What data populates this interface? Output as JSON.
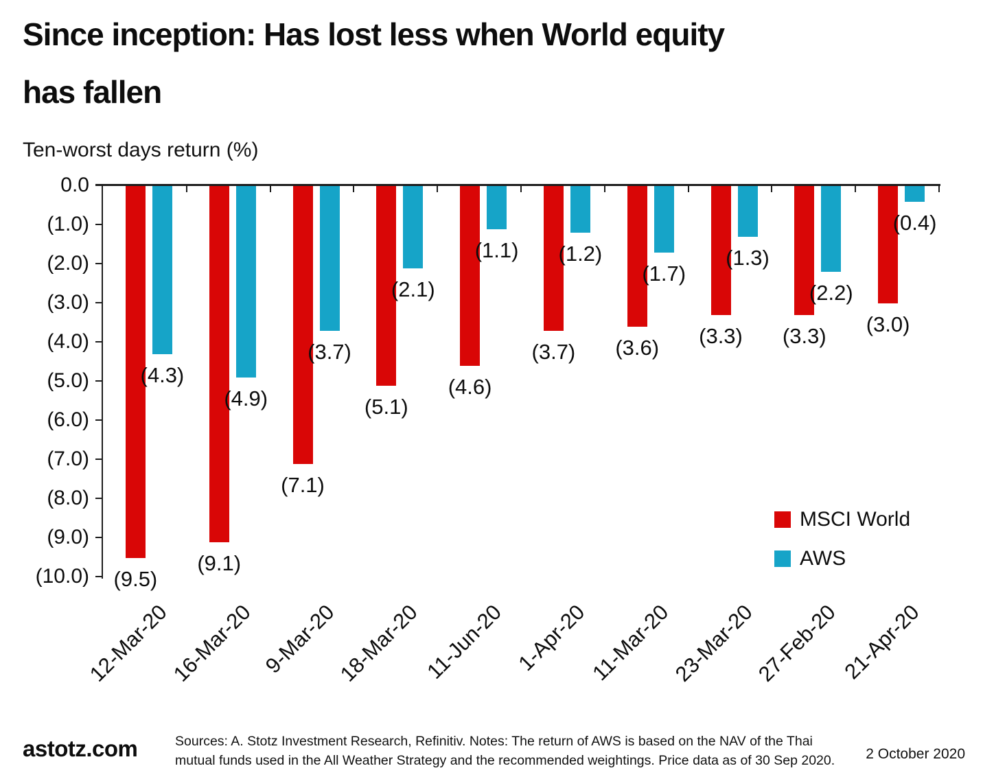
{
  "title": {
    "line1": "Since inception: Has lost less when World equity",
    "line2": "has fallen"
  },
  "subtitle": "Ten-worst days return (%)",
  "legend": [
    {
      "label": "MSCI World",
      "color": "#D90606"
    },
    {
      "label": "AWS",
      "color": "#16A4C8"
    }
  ],
  "footer": {
    "brand": "astotz.com",
    "note_line1": "Sources: A. Stotz Investment Research, Refinitiv. Notes: The return of AWS is based on the NAV of the Thai",
    "note_line2": "mutual funds used in the All Weather Strategy and the recommended weightings. Price data as of 30 Sep 2020.",
    "date": "2 October 2020"
  },
  "chart_data": {
    "type": "bar",
    "title": "Since inception: Has lost less when World equity has fallen",
    "ylabel": "Ten-worst days return (%)",
    "xlabel": "",
    "categories": [
      "12-Mar-20",
      "16-Mar-20",
      "9-Mar-20",
      "18-Mar-20",
      "11-Jun-20",
      "1-Apr-20",
      "11-Mar-20",
      "23-Mar-20",
      "27-Feb-20",
      "21-Apr-20"
    ],
    "series": [
      {
        "name": "MSCI World",
        "color": "#D90606",
        "values": [
          -9.5,
          -9.1,
          -7.1,
          -5.1,
          -4.6,
          -3.7,
          -3.6,
          -3.3,
          -3.3,
          -3.0
        ],
        "labels": [
          "(9.5)",
          "(9.1)",
          "(7.1)",
          "(5.1)",
          "(4.6)",
          "(3.7)",
          "(3.6)",
          "(3.3)",
          "(3.3)",
          "(3.0)"
        ]
      },
      {
        "name": "AWS",
        "color": "#16A4C8",
        "values": [
          -4.3,
          -4.9,
          -3.7,
          -2.1,
          -1.1,
          -1.2,
          -1.7,
          -1.3,
          -2.2,
          -0.4
        ],
        "labels": [
          "(4.3)",
          "(4.9)",
          "(3.7)",
          "(2.1)",
          "(1.1)",
          "(1.2)",
          "(1.7)",
          "(1.3)",
          "(2.2)",
          "(0.4)"
        ]
      }
    ],
    "y_axis": {
      "min": -10,
      "max": 0,
      "step": 1,
      "tick_labels": [
        "0.0",
        "(1.0)",
        "(2.0)",
        "(3.0)",
        "(4.0)",
        "(5.0)",
        "(6.0)",
        "(7.0)",
        "(8.0)",
        "(9.0)",
        "(10.0)"
      ]
    },
    "grid": false,
    "legend_position": "inside-right",
    "value_label_format": "absolute value in parentheses"
  }
}
